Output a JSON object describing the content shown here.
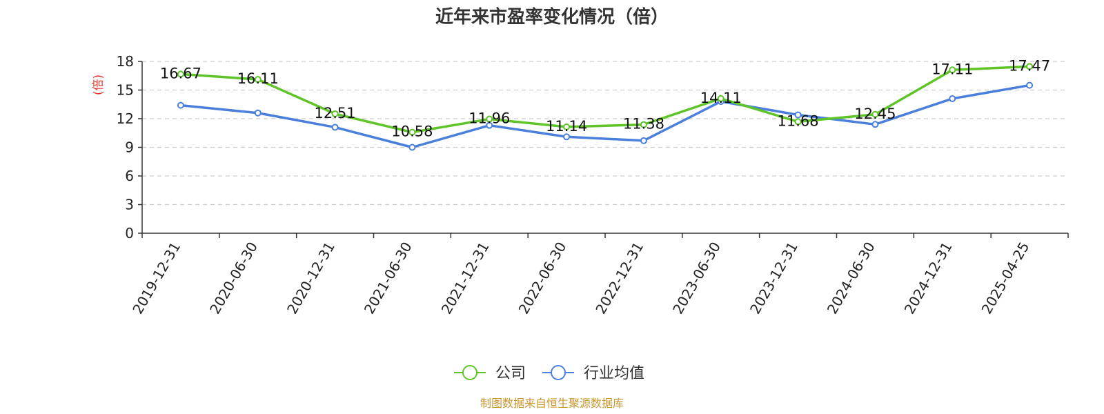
{
  "chart_data": {
    "type": "line",
    "title": "近年来市盈率变化情况（倍）",
    "ylabel": "(倍)",
    "xlabel": "",
    "categories": [
      "2019-12-31",
      "2020-06-30",
      "2020-12-31",
      "2021-06-30",
      "2021-12-31",
      "2022-06-30",
      "2022-12-31",
      "2023-06-30",
      "2023-12-31",
      "2024-06-30",
      "2024-12-31",
      "2025-04-25"
    ],
    "yticks": [
      "0",
      "3",
      "6",
      "9",
      "12",
      "15",
      "18"
    ],
    "ylim": [
      0,
      18
    ],
    "grid": true,
    "legend_position": "bottom-center",
    "series": [
      {
        "name": "公司",
        "color": "#5fc427",
        "values": [
          16.67,
          16.11,
          12.51,
          10.58,
          11.96,
          11.14,
          11.38,
          14.11,
          11.68,
          12.45,
          17.11,
          17.47
        ],
        "labels": [
          "16.67",
          "16.11",
          "12.51",
          "10.58",
          "11.96",
          "11.14",
          "11.38",
          "14.11",
          "11.68",
          "12.45",
          "17.11",
          "17.47"
        ]
      },
      {
        "name": "行业均值",
        "color": "#4a7fdc",
        "values": [
          13.4,
          12.6,
          11.1,
          9.0,
          11.3,
          10.1,
          9.7,
          13.8,
          12.4,
          11.4,
          14.1,
          15.5
        ]
      }
    ]
  },
  "source": "制图数据来自恒生聚源数据库",
  "colors": {
    "ylabel": "#e8322c",
    "source": "#c8962e",
    "grid": "#cccccc",
    "axis": "#333333"
  }
}
